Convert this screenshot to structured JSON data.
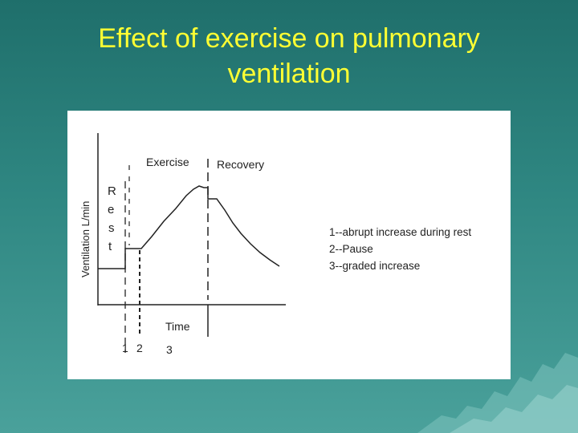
{
  "slide": {
    "title_line1": "Effect of exercise on pulmonary",
    "title_line2": "ventilation"
  },
  "diagram": {
    "y_axis_label": "Ventilation L/min",
    "x_axis_label": "Time",
    "phase_exercise": "Exercise",
    "phase_recovery": "Recovery",
    "rest_letters": [
      "R",
      "e",
      "s",
      "t"
    ],
    "markers": [
      "1",
      "2",
      "3"
    ]
  },
  "legend": {
    "items": [
      "1--abrupt increase during rest",
      "2--Pause",
      "3--graded increase"
    ]
  },
  "colors": {
    "title": "#ffff33",
    "background": "#2f8782",
    "panel": "#ffffff",
    "line": "#222222"
  }
}
